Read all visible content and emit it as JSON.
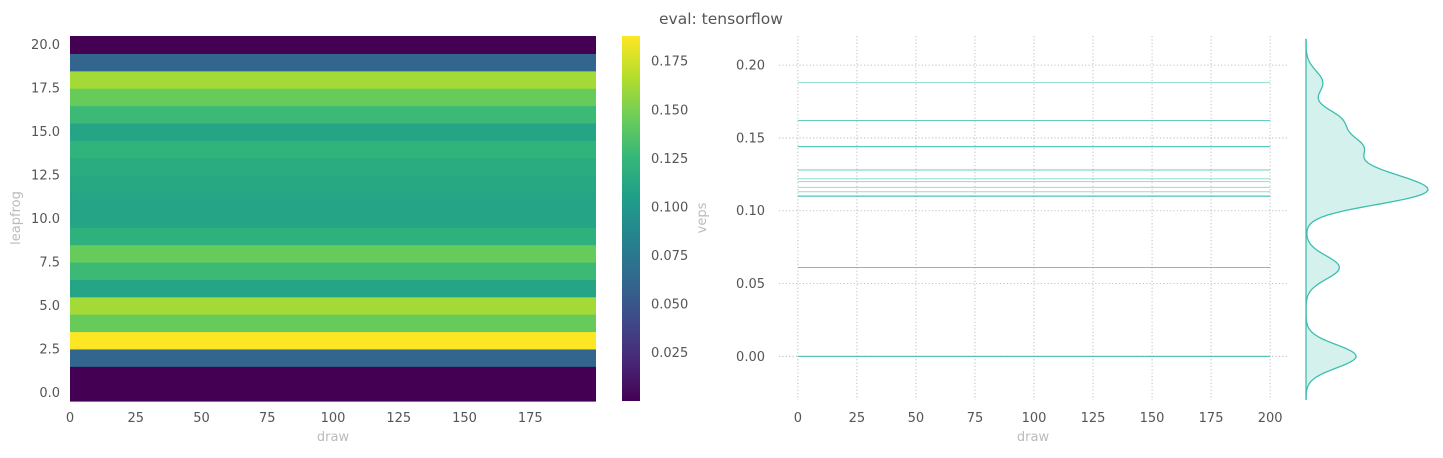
{
  "figure": {
    "title": "eval: tensorflow"
  },
  "chart_data": [
    {
      "type": "heatmap",
      "xlabel": "draw",
      "ylabel": "leapfrog",
      "x_range": [
        0,
        200
      ],
      "x_ticks": [
        "0",
        "25",
        "50",
        "75",
        "100",
        "125",
        "150",
        "175"
      ],
      "y_range": [
        -0.5,
        20.5
      ],
      "y_ticks": [
        "0.0",
        "2.5",
        "5.0",
        "7.5",
        "10.0",
        "12.5",
        "15.0",
        "17.5",
        "20.0"
      ],
      "rows": [
        0,
        1,
        2,
        3,
        4,
        5,
        6,
        7,
        8,
        9,
        10,
        11,
        12,
        13,
        14,
        15,
        16,
        17,
        18,
        19,
        20
      ],
      "row_values": [
        0.0,
        0.0,
        0.061,
        0.188,
        0.144,
        0.162,
        0.11,
        0.128,
        0.144,
        0.12,
        0.11,
        0.11,
        0.113,
        0.116,
        0.122,
        0.11,
        0.128,
        0.144,
        0.162,
        0.061,
        0.0
      ],
      "colormap": "viridis",
      "colorbar": {
        "label": "veps",
        "range": [
          0.0,
          0.188
        ],
        "ticks": [
          "0.025",
          "0.050",
          "0.075",
          "0.100",
          "0.125",
          "0.150",
          "0.175"
        ]
      }
    },
    {
      "type": "line",
      "xlabel": "draw",
      "ylabel": "",
      "xlim": [
        -8,
        208
      ],
      "ylim": [
        -0.03,
        0.22
      ],
      "x_ticks": [
        "0",
        "25",
        "50",
        "75",
        "100",
        "125",
        "150",
        "175",
        "200"
      ],
      "y_ticks": [
        "0.00",
        "0.05",
        "0.10",
        "0.15",
        "0.20"
      ],
      "grid": true,
      "grid_style": "dotted",
      "color": "#3dbfae",
      "x_extent": [
        0,
        200
      ],
      "series_levels": [
        0.0,
        0.0,
        0.061,
        0.188,
        0.144,
        0.162,
        0.11,
        0.128,
        0.144,
        0.12,
        0.11,
        0.11,
        0.113,
        0.116,
        0.122,
        0.11,
        0.128,
        0.144,
        0.162,
        0.061,
        0.0
      ],
      "marginal": "kde"
    }
  ]
}
